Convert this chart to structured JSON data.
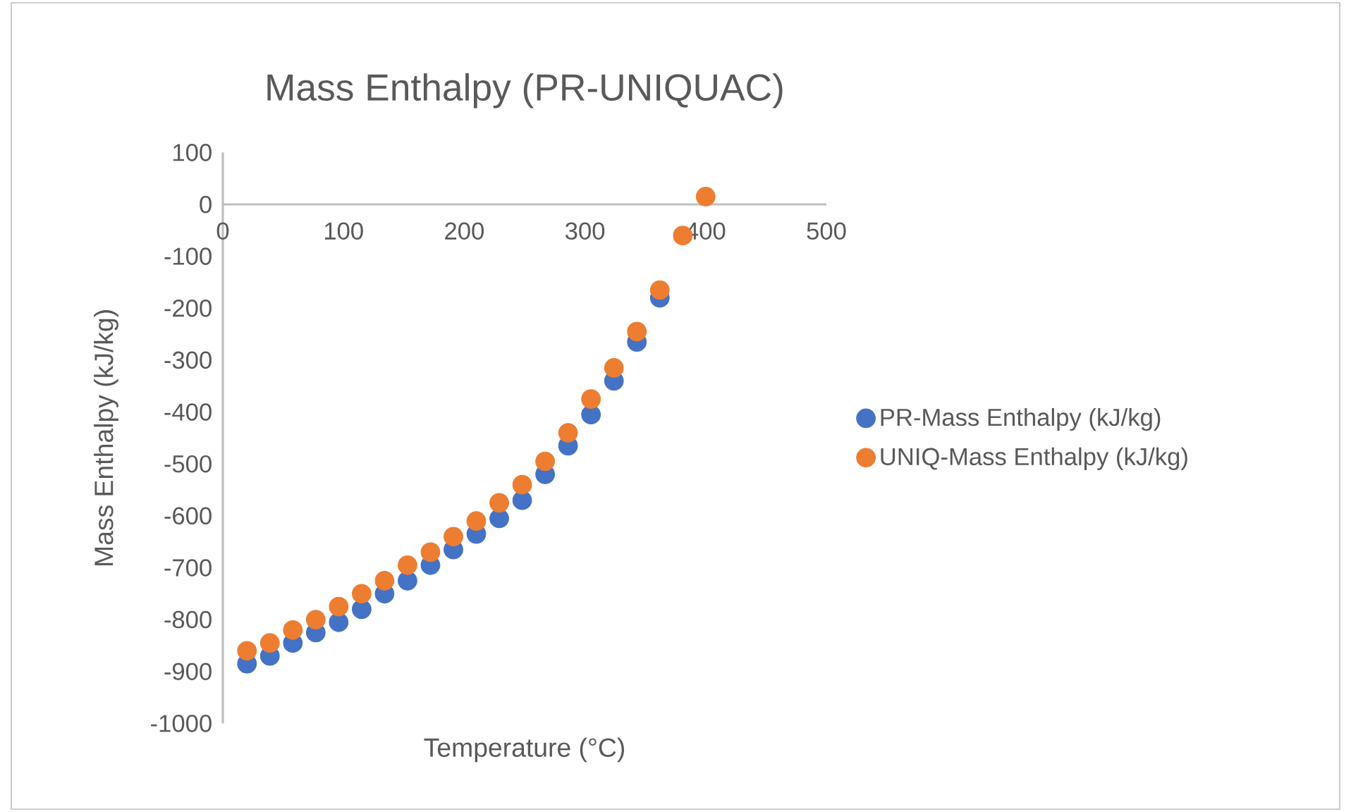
{
  "chart_data": {
    "type": "scatter",
    "title": "Mass Enthalpy (PR-UNIQUAC)",
    "xlabel": "Temperature (°C)",
    "ylabel": "Mass Enthalpy (kJ/kg)",
    "x": [
      20,
      39,
      58,
      77,
      96,
      115,
      134,
      153,
      172,
      191,
      210,
      229,
      248,
      267,
      286,
      305,
      324,
      343,
      362,
      381,
      400
    ],
    "series": [
      {
        "name": "PR-Mass Enthalpy (kJ/kg)",
        "color": "#4472c4",
        "values": [
          -885,
          -870,
          -845,
          -825,
          -805,
          -780,
          -750,
          -725,
          -695,
          -665,
          -635,
          -605,
          -570,
          -520,
          -465,
          -405,
          -340,
          -265,
          -180,
          null,
          null
        ]
      },
      {
        "name": "UNIQ-Mass Enthalpy (kJ/kg)",
        "color": "#ed7d31",
        "values": [
          -860,
          -845,
          -820,
          -800,
          -775,
          -750,
          -725,
          -695,
          -670,
          -640,
          -610,
          -575,
          -540,
          -495,
          -440,
          -375,
          -315,
          -245,
          -165,
          -60,
          15
        ]
      }
    ],
    "xlim": [
      0,
      500
    ],
    "xticks": [
      0,
      100,
      200,
      300,
      400,
      500
    ],
    "ylim": [
      -1000,
      100
    ],
    "yticks": [
      -1000,
      -900,
      -800,
      -700,
      -600,
      -500,
      -400,
      -300,
      -200,
      -100,
      0,
      100
    ],
    "grid": false,
    "legend": "right",
    "marker": "circle"
  }
}
